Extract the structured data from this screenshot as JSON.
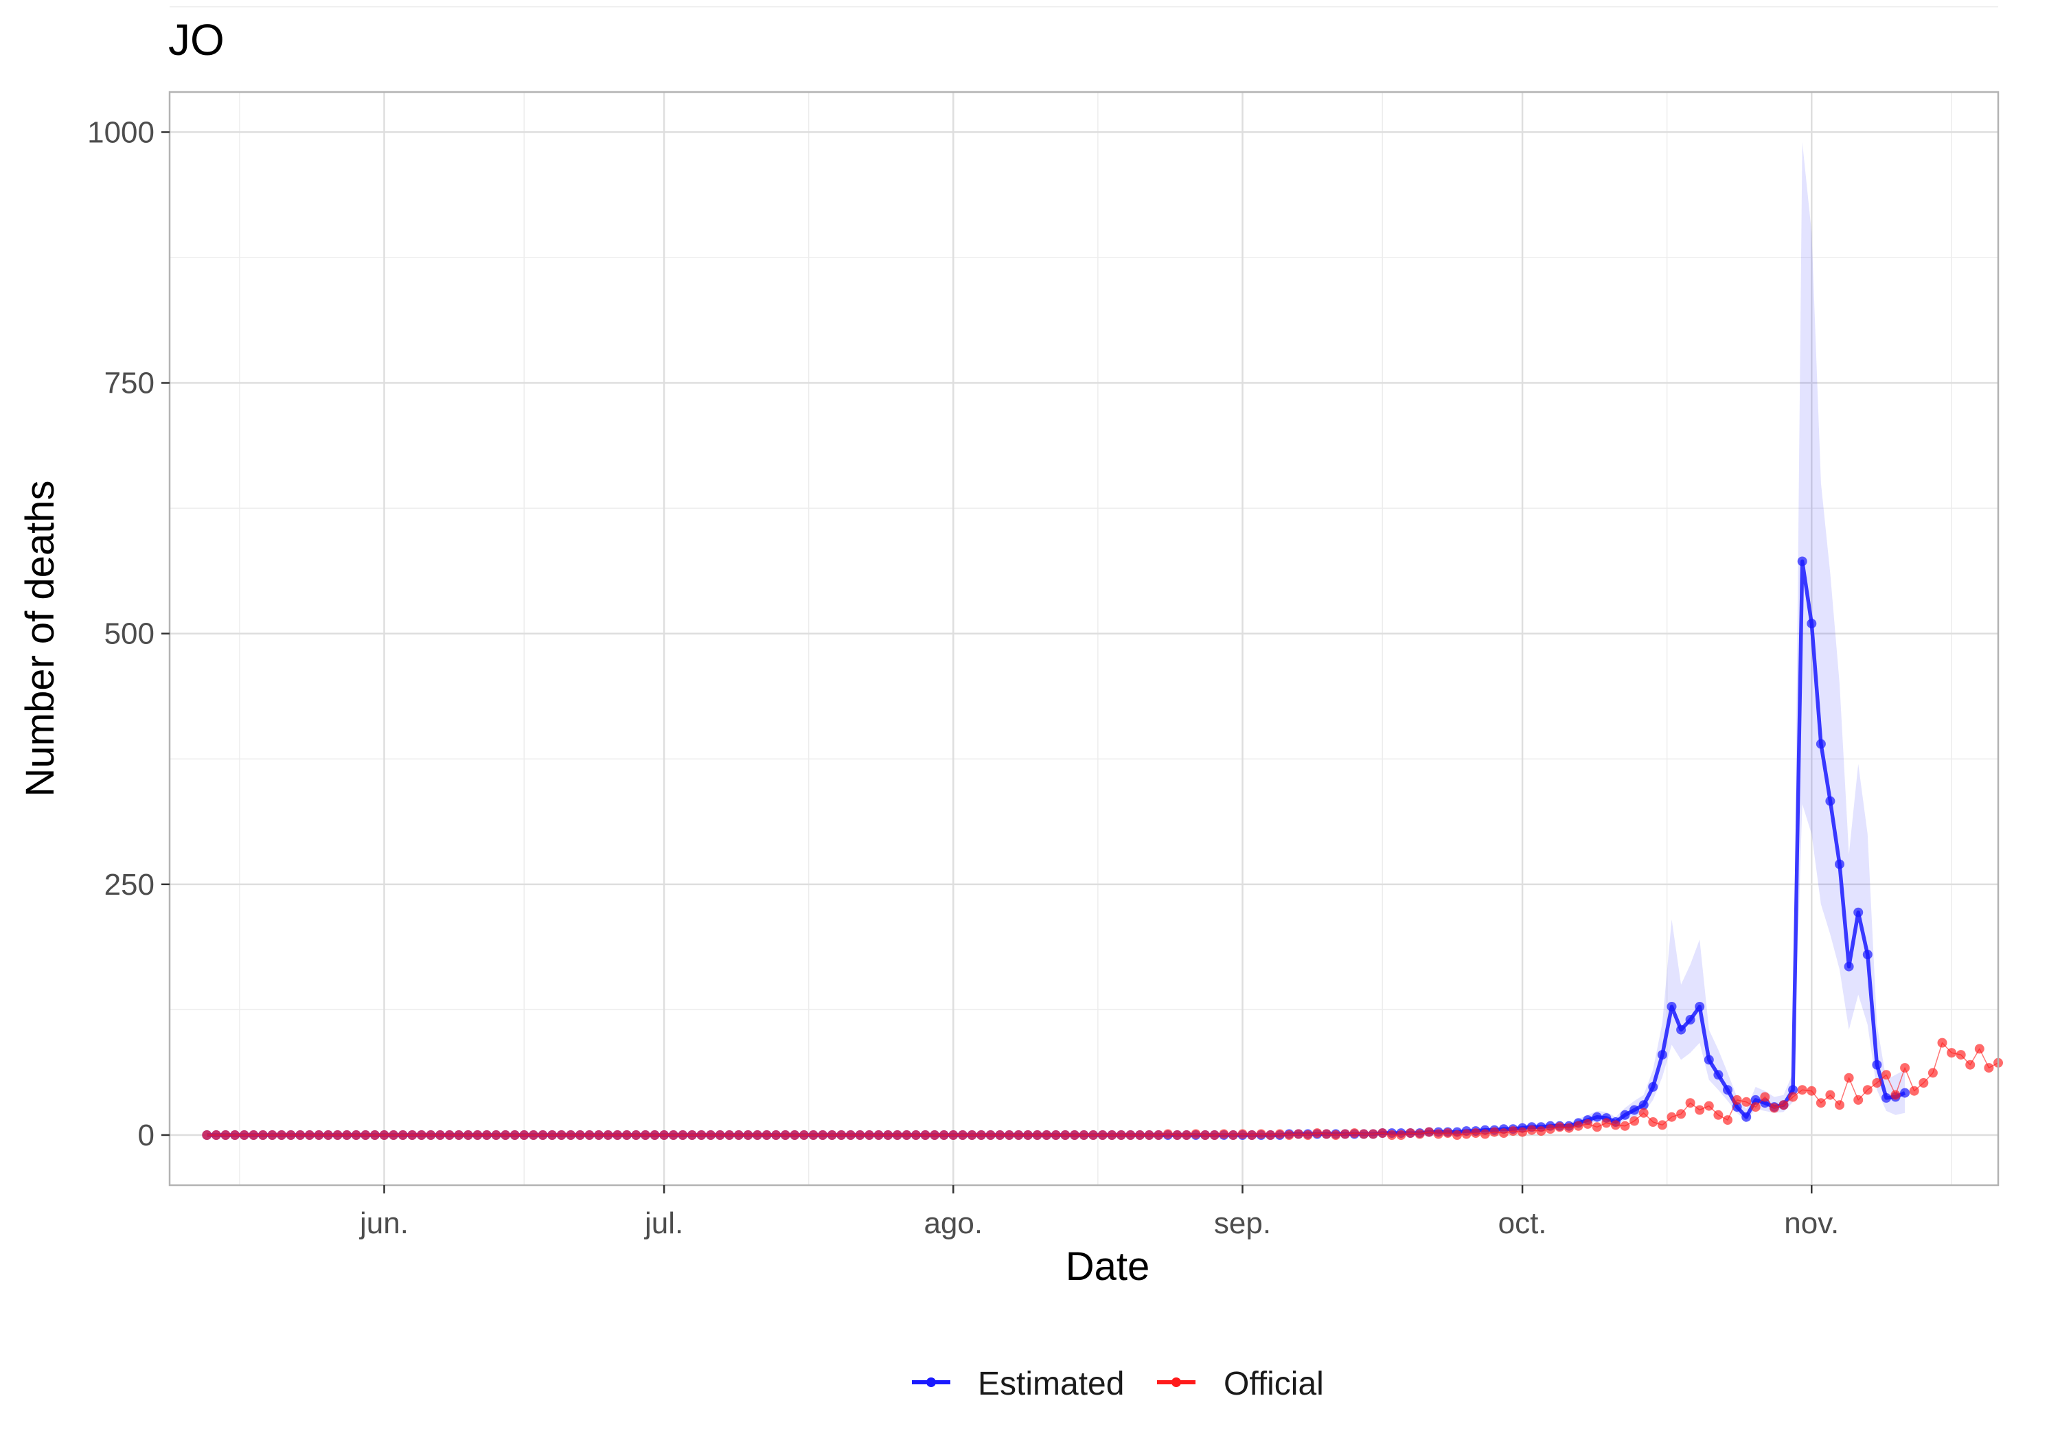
{
  "chart_data": {
    "type": "line",
    "title": "JO",
    "xlabel": "Date",
    "ylabel": "Number of deaths",
    "x_start": "2020-05-13",
    "x_end": "2020-11-17",
    "xlim": [
      "2020-05-09",
      "2020-11-21"
    ],
    "ylim": [
      -50,
      1040
    ],
    "y_ticks": [
      0,
      250,
      500,
      750,
      1000
    ],
    "x_ticks": [
      {
        "date": "2020-06-01",
        "label": "jun."
      },
      {
        "date": "2020-07-01",
        "label": "jul."
      },
      {
        "date": "2020-08-01",
        "label": "ago."
      },
      {
        "date": "2020-09-01",
        "label": "sep."
      },
      {
        "date": "2020-10-01",
        "label": "oct."
      },
      {
        "date": "2020-11-01",
        "label": "nov."
      }
    ],
    "grid": true,
    "legend_position": "bottom",
    "series": [
      {
        "name": "Estimated",
        "color": "#1a1aff",
        "values": [
          0,
          0,
          0,
          0,
          0,
          0,
          0,
          0,
          0,
          0,
          0,
          0,
          0,
          0,
          0,
          0,
          0,
          0,
          0,
          0,
          0,
          0,
          0,
          0,
          0,
          0,
          0,
          0,
          0,
          0,
          0,
          0,
          0,
          0,
          0,
          0,
          0,
          0,
          0,
          0,
          0,
          0,
          0,
          0,
          0,
          0,
          0,
          0,
          0,
          0,
          0,
          0,
          0,
          0,
          0,
          0,
          0,
          0,
          0,
          0,
          0,
          0,
          0,
          0,
          0,
          0,
          0,
          0,
          0,
          0,
          0,
          0,
          0,
          0,
          0,
          0,
          0,
          0,
          0,
          0,
          0,
          0,
          0,
          0,
          0,
          0,
          0,
          0,
          0,
          0,
          0,
          0,
          0,
          0,
          0,
          0,
          0,
          0,
          0,
          0,
          0,
          0,
          0,
          0,
          0,
          0,
          0,
          0,
          0,
          0,
          0,
          0,
          0,
          0,
          0,
          0,
          1,
          1,
          1,
          1,
          1,
          1,
          1,
          1,
          1,
          1,
          2,
          2,
          2,
          2,
          2,
          3,
          3,
          3,
          3,
          4,
          4,
          5,
          5,
          6,
          6,
          7,
          8,
          8,
          9,
          9,
          9,
          12,
          15,
          18,
          17,
          13,
          20,
          25,
          30,
          48,
          80,
          128,
          105,
          115,
          128,
          75,
          60,
          45,
          28,
          18,
          35,
          32,
          28,
          30,
          45,
          572,
          510,
          390,
          333,
          270,
          168,
          222,
          180,
          70,
          37,
          38,
          42
        ],
        "lower": [
          0,
          0,
          0,
          0,
          0,
          0,
          0,
          0,
          0,
          0,
          0,
          0,
          0,
          0,
          0,
          0,
          0,
          0,
          0,
          0,
          0,
          0,
          0,
          0,
          0,
          0,
          0,
          0,
          0,
          0,
          0,
          0,
          0,
          0,
          0,
          0,
          0,
          0,
          0,
          0,
          0,
          0,
          0,
          0,
          0,
          0,
          0,
          0,
          0,
          0,
          0,
          0,
          0,
          0,
          0,
          0,
          0,
          0,
          0,
          0,
          0,
          0,
          0,
          0,
          0,
          0,
          0,
          0,
          0,
          0,
          0,
          0,
          0,
          0,
          0,
          0,
          0,
          0,
          0,
          0,
          0,
          0,
          0,
          0,
          0,
          0,
          0,
          0,
          0,
          0,
          0,
          0,
          0,
          0,
          0,
          0,
          0,
          0,
          0,
          0,
          0,
          0,
          0,
          0,
          0,
          0,
          0,
          0,
          0,
          0,
          0,
          0,
          0,
          0,
          0,
          0,
          1,
          1,
          1,
          1,
          1,
          1,
          1,
          1,
          1,
          1,
          1,
          1,
          1,
          1,
          1,
          2,
          2,
          2,
          2,
          3,
          3,
          4,
          4,
          5,
          5,
          5,
          6,
          6,
          7,
          7,
          7,
          9,
          11,
          14,
          13,
          10,
          15,
          18,
          22,
          35,
          58,
          90,
          75,
          82,
          92,
          55,
          45,
          34,
          22,
          14,
          26,
          24,
          22,
          23,
          33,
          330,
          300,
          230,
          200,
          165,
          105,
          140,
          110,
          45,
          24,
          20,
          22
        ],
        "upper": [
          0,
          0,
          0,
          0,
          0,
          0,
          0,
          0,
          0,
          0,
          0,
          0,
          0,
          0,
          0,
          0,
          0,
          0,
          0,
          0,
          0,
          0,
          0,
          0,
          0,
          0,
          0,
          0,
          0,
          0,
          0,
          0,
          0,
          0,
          0,
          0,
          0,
          0,
          0,
          0,
          0,
          0,
          0,
          0,
          0,
          0,
          0,
          0,
          0,
          0,
          0,
          0,
          0,
          0,
          0,
          0,
          0,
          0,
          0,
          0,
          0,
          0,
          0,
          0,
          0,
          0,
          0,
          0,
          0,
          0,
          0,
          0,
          0,
          0,
          0,
          0,
          0,
          0,
          0,
          0,
          0,
          0,
          0,
          0,
          0,
          0,
          0,
          0,
          0,
          0,
          0,
          0,
          0,
          0,
          0,
          0,
          0,
          0,
          0,
          0,
          0,
          0,
          0,
          0,
          0,
          0,
          0,
          0,
          0,
          0,
          0,
          0,
          0,
          0,
          0,
          0,
          2,
          2,
          2,
          2,
          2,
          2,
          2,
          2,
          2,
          2,
          3,
          3,
          3,
          3,
          3,
          4,
          4,
          4,
          4,
          6,
          6,
          7,
          7,
          8,
          8,
          10,
          11,
          11,
          12,
          12,
          12,
          16,
          20,
          24,
          23,
          18,
          27,
          34,
          40,
          65,
          112,
          215,
          150,
          170,
          195,
          105,
          85,
          62,
          38,
          26,
          48,
          44,
          38,
          40,
          62,
          990,
          900,
          650,
          560,
          450,
          280,
          370,
          300,
          110,
          55,
          60,
          65
        ]
      },
      {
        "name": "Official",
        "color": "#ff1a1a",
        "values": [
          0,
          0,
          0,
          0,
          0,
          0,
          0,
          0,
          0,
          0,
          0,
          0,
          0,
          0,
          0,
          0,
          0,
          0,
          0,
          0,
          0,
          0,
          0,
          0,
          0,
          0,
          0,
          0,
          0,
          0,
          0,
          0,
          0,
          0,
          0,
          0,
          0,
          0,
          0,
          0,
          0,
          0,
          0,
          0,
          0,
          0,
          0,
          0,
          0,
          0,
          0,
          0,
          0,
          0,
          0,
          0,
          0,
          0,
          0,
          0,
          0,
          0,
          0,
          0,
          0,
          0,
          0,
          0,
          0,
          0,
          0,
          0,
          0,
          0,
          0,
          0,
          0,
          0,
          0,
          0,
          0,
          0,
          0,
          0,
          0,
          0,
          0,
          0,
          0,
          0,
          0,
          0,
          0,
          0,
          0,
          0,
          0,
          0,
          0,
          0,
          0,
          0,
          0,
          1,
          0,
          0,
          1,
          0,
          0,
          1,
          0,
          1,
          0,
          1,
          0,
          1,
          0,
          1,
          0,
          2,
          1,
          0,
          1,
          2,
          1,
          1,
          2,
          0,
          0,
          2,
          1,
          3,
          1,
          2,
          0,
          1,
          2,
          1,
          3,
          2,
          4,
          3,
          5,
          4,
          6,
          8,
          7,
          9,
          11,
          8,
          12,
          10,
          9,
          14,
          22,
          13,
          10,
          18,
          21,
          32,
          25,
          29,
          20,
          15,
          35,
          33,
          28,
          38,
          27,
          30,
          38,
          45,
          44,
          32,
          40,
          30,
          57,
          35,
          45,
          52,
          60,
          40,
          67,
          44,
          52,
          62,
          92,
          82,
          80,
          70,
          86,
          67,
          72
        ]
      }
    ]
  },
  "legend": {
    "items": [
      {
        "label": "Estimated",
        "color": "#1a1aff"
      },
      {
        "label": "Official",
        "color": "#ff1a1a"
      }
    ]
  }
}
